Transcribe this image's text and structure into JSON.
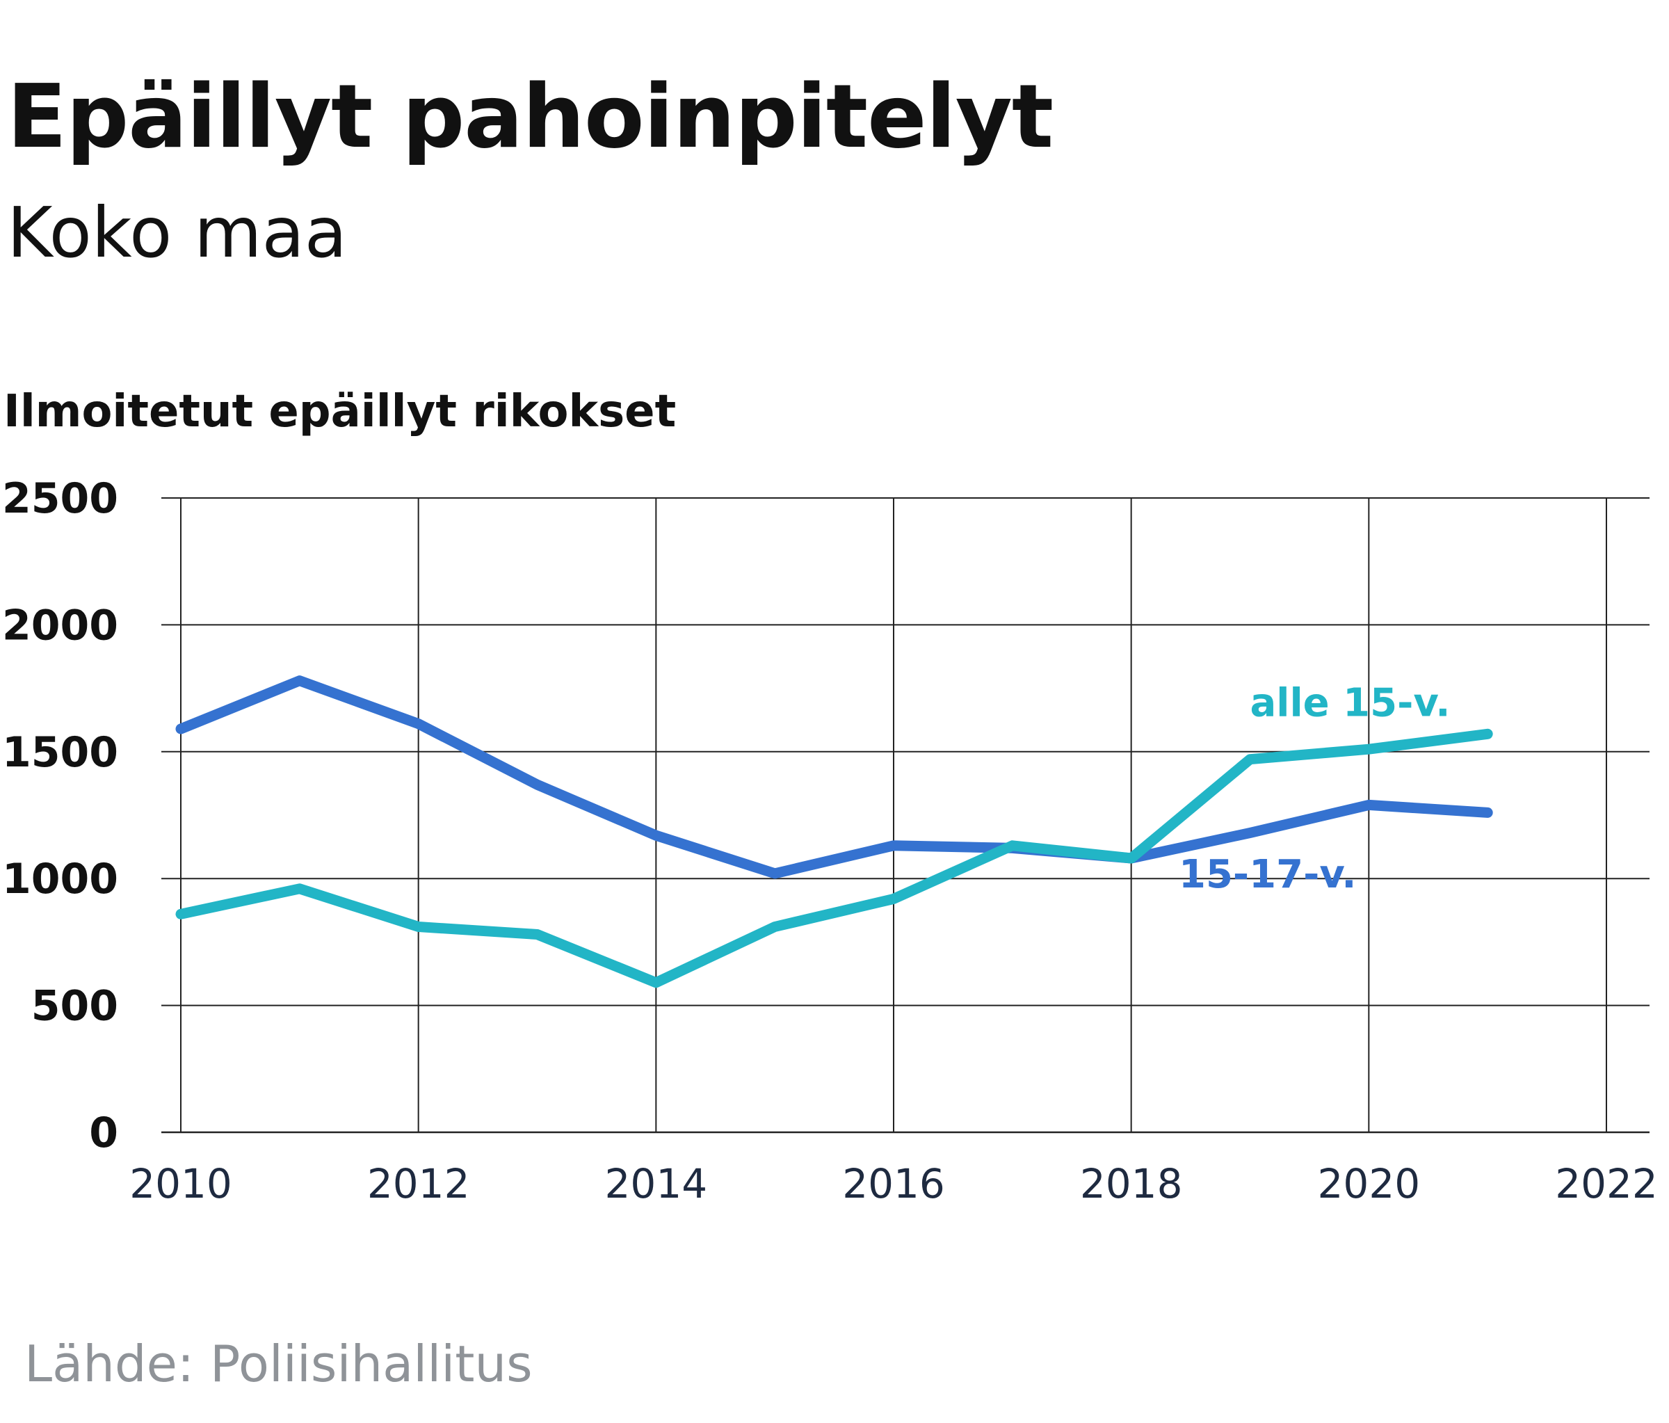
{
  "chart_data": {
    "type": "line",
    "title": "Epäillyt pahoinpitelyt",
    "subtitle": "Koko maa",
    "ylabel": "Ilmoitetut epäillyt rikokset",
    "xlabel": "",
    "source": "Lähde: Poliisihallitus",
    "xlim": [
      2010,
      2022
    ],
    "ylim": [
      0,
      2500
    ],
    "x_ticks": [
      "2010",
      "2012",
      "2014",
      "2016",
      "2018",
      "2020",
      "2022"
    ],
    "y_ticks": [
      "0",
      "500",
      "1000",
      "1500",
      "2000",
      "2500"
    ],
    "grid": true,
    "x": [
      2010,
      2011,
      2012,
      2013,
      2014,
      2015,
      2016,
      2017,
      2018,
      2019,
      2020,
      2021
    ],
    "series": [
      {
        "name": "15-17-v.",
        "color": "#3572d0",
        "values": [
          1590,
          1780,
          1610,
          1370,
          1170,
          1020,
          1130,
          1120,
          1080,
          1180,
          1290,
          1260
        ]
      },
      {
        "name": "alle 15-v.",
        "color": "#22b5c6",
        "values": [
          860,
          960,
          810,
          780,
          590,
          810,
          920,
          1130,
          1080,
          1470,
          1510,
          1570
        ]
      }
    ]
  }
}
